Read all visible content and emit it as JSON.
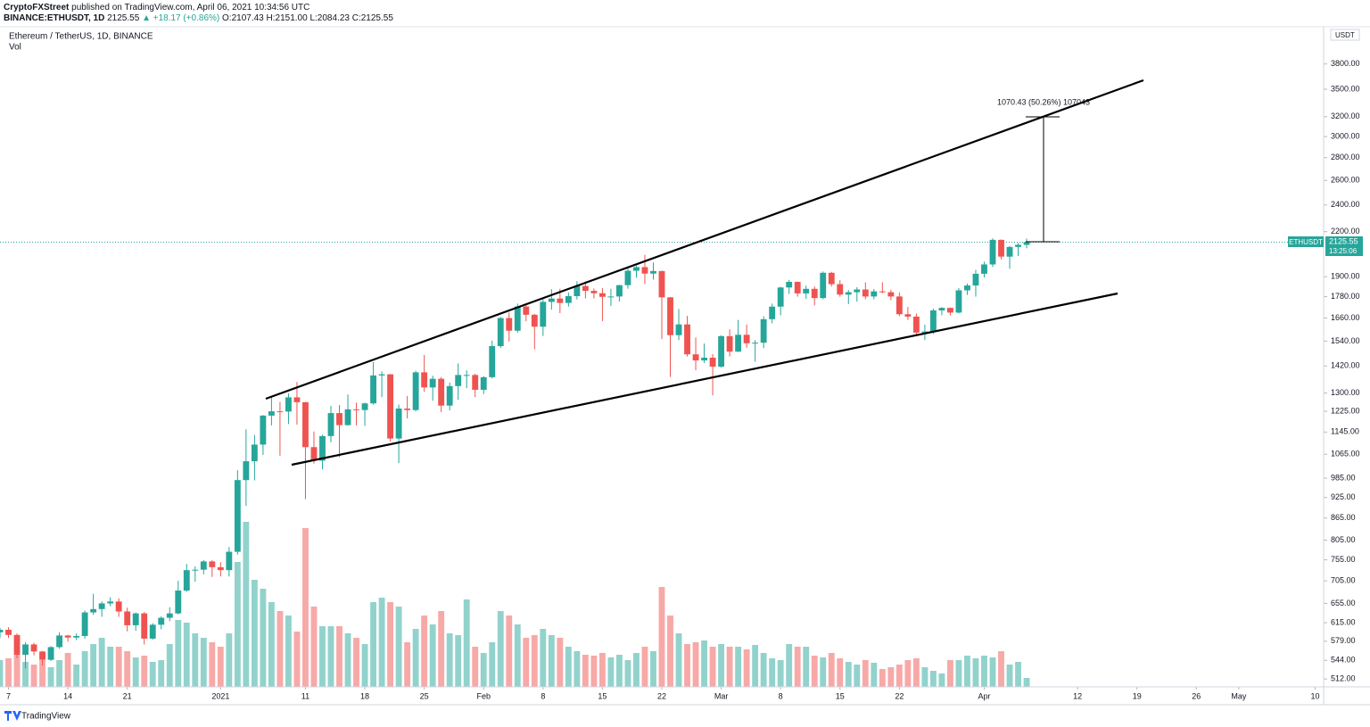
{
  "header": {
    "publisher": "CryptoFXStreet",
    "published": "published on TradingView.com, April 06, 2021 10:34:56 UTC",
    "symbol": "BINANCE:ETHUSDT, 1D",
    "last": "2125.55",
    "change": "▲ +18.17 (+0.86%)",
    "open": "O:2107.43",
    "high": "H:2151.00",
    "low": "L:2084.23",
    "close": "C:2125.55"
  },
  "price_box": {
    "symbol": "ETHUSDT",
    "price": "2125.55",
    "countdown": "13:25:06"
  },
  "currency": "USDT",
  "measure": "1070.43 (50.26%) 107043",
  "footer": "TradingView",
  "chart_data": {
    "type": "candlestick",
    "title": "Ethereum / TetherUS, 1D, BINANCE",
    "volume_label": "Vol",
    "log_scale": true,
    "up_color": "#26a69a",
    "down_color": "#ef5350",
    "xlim": [
      "2020-12-06",
      "2021-05-11"
    ],
    "ylim": [
      499,
      4290
    ],
    "yticks": [
      {
        "value": 3800,
        "label": "3800.00"
      },
      {
        "value": 3500,
        "label": "3500.00"
      },
      {
        "value": 3200,
        "label": "3200.00"
      },
      {
        "value": 3000,
        "label": "3000.00"
      },
      {
        "value": 2800,
        "label": "2800.00"
      },
      {
        "value": 2600,
        "label": "2600.00"
      },
      {
        "value": 2400,
        "label": "2400.00"
      },
      {
        "value": 2200,
        "label": "2200.00"
      },
      {
        "value": 1900,
        "label": "1900.00"
      },
      {
        "value": 1780,
        "label": "1780.00"
      },
      {
        "value": 1660,
        "label": "1660.00"
      },
      {
        "value": 1540,
        "label": "1540.00"
      },
      {
        "value": 1420,
        "label": "1420.00"
      },
      {
        "value": 1300,
        "label": "1300.00"
      },
      {
        "value": 1225,
        "label": "1225.00"
      },
      {
        "value": 1145,
        "label": "1145.00"
      },
      {
        "value": 1065,
        "label": "1065.00"
      },
      {
        "value": 985,
        "label": "985.00"
      },
      {
        "value": 925,
        "label": "925.00"
      },
      {
        "value": 865,
        "label": "865.00"
      },
      {
        "value": 805,
        "label": "805.00"
      },
      {
        "value": 755,
        "label": "755.00"
      },
      {
        "value": 705,
        "label": "705.00"
      },
      {
        "value": 655,
        "label": "655.00"
      },
      {
        "value": 615,
        "label": "615.00"
      },
      {
        "value": 579,
        "label": "579.00"
      },
      {
        "value": 544,
        "label": "544.00"
      },
      {
        "value": 512,
        "label": "512.00"
      }
    ],
    "xticks": [
      {
        "value": "2020-12-07",
        "label": "7"
      },
      {
        "value": "2020-12-14",
        "label": "14"
      },
      {
        "value": "2020-12-21",
        "label": "21"
      },
      {
        "value": "2021-01-01",
        "label": "2021"
      },
      {
        "value": "2021-01-11",
        "label": "11"
      },
      {
        "value": "2021-01-18",
        "label": "18"
      },
      {
        "value": "2021-01-25",
        "label": "25"
      },
      {
        "value": "2021-02-01",
        "label": "Feb"
      },
      {
        "value": "2021-02-08",
        "label": "8"
      },
      {
        "value": "2021-02-15",
        "label": "15"
      },
      {
        "value": "2021-02-22",
        "label": "22"
      },
      {
        "value": "2021-03-01",
        "label": "Mar"
      },
      {
        "value": "2021-03-08",
        "label": "8"
      },
      {
        "value": "2021-03-15",
        "label": "15"
      },
      {
        "value": "2021-03-22",
        "label": "22"
      },
      {
        "value": "2021-04-01",
        "label": "Apr"
      },
      {
        "value": "2021-04-12",
        "label": "12"
      },
      {
        "value": "2021-04-19",
        "label": "19"
      },
      {
        "value": "2021-04-26",
        "label": "26"
      },
      {
        "value": "2021-05-01",
        "label": "May"
      },
      {
        "value": "2021-05-10",
        "label": "10"
      }
    ],
    "x_start": "2020-12-06",
    "open": [
      596,
      601,
      591,
      554,
      573,
      560,
      545,
      568,
      590,
      586,
      589,
      636,
      643,
      655,
      659,
      638,
      610,
      634,
      584,
      611,
      625,
      634,
      683,
      730,
      731,
      751,
      737,
      730,
      775,
      979,
      1041,
      1099,
      1208,
      1225,
      1224,
      1282,
      1262,
      1090,
      1043,
      1130,
      1218,
      1171,
      1233,
      1230,
      1257,
      1377,
      1382,
      1121,
      1236,
      1230,
      1391,
      1324,
      1362,
      1248,
      1330,
      1379,
      1379,
      1314,
      1369,
      1515,
      1660,
      1593,
      1724,
      1678,
      1614,
      1750,
      1769,
      1744,
      1783,
      1843,
      1814,
      1800,
      1779,
      1781,
      1848,
      1937,
      1960,
      1919,
      1935,
      1776,
      1570,
      1626,
      1475,
      1446,
      1459,
      1417,
      1565,
      1488,
      1572,
      1529,
      1532,
      1654,
      1723,
      1834,
      1868,
      1799,
      1826,
      1772,
      1924,
      1854,
      1792,
      1806,
      1822,
      1781,
      1811,
      1806,
      1781,
      1681,
      1668,
      1583,
      1589,
      1702,
      1716,
      1690,
      1817,
      1846,
      1918,
      1977,
      2142,
      2028,
      2093,
      2107.43
    ],
    "high": [
      605,
      606,
      594,
      577,
      576,
      561,
      570,
      596,
      591,
      594,
      640,
      676,
      659,
      668,
      666,
      646,
      636,
      637,
      614,
      628,
      647,
      705,
      745,
      739,
      754,
      754,
      749,
      787,
      1011,
      1155,
      1134,
      1210,
      1283,
      1263,
      1300,
      1348,
      1263,
      1147,
      1135,
      1247,
      1250,
      1294,
      1260,
      1260,
      1438,
      1395,
      1383,
      1252,
      1288,
      1398,
      1472,
      1376,
      1370,
      1345,
      1432,
      1400,
      1385,
      1374,
      1543,
      1666,
      1690,
      1740,
      1741,
      1683,
      1765,
      1824,
      1826,
      1805,
      1872,
      1871,
      1828,
      1830,
      1826,
      1850,
      1957,
      1970,
      2040,
      1990,
      1937,
      1778,
      1710,
      1672,
      1558,
      1528,
      1476,
      1570,
      1600,
      1650,
      1625,
      1545,
      1670,
      1740,
      1838,
      1880,
      1870,
      1845,
      1840,
      1932,
      1930,
      1878,
      1819,
      1836,
      1865,
      1825,
      1865,
      1820,
      1805,
      1722,
      1685,
      1625,
      1712,
      1720,
      1718,
      1830,
      1858,
      1943,
      1995,
      2152,
      2145,
      2100,
      2120,
      2151
    ],
    "low": [
      585,
      585,
      548,
      530,
      553,
      535,
      543,
      565,
      578,
      581,
      584,
      631,
      627,
      649,
      627,
      598,
      599,
      573,
      582,
      602,
      618,
      632,
      680,
      703,
      720,
      714,
      715,
      715,
      768,
      900,
      978,
      1063,
      1170,
      1060,
      1175,
      1173,
      920,
      1033,
      1014,
      1107,
      1055,
      1170,
      1170,
      1168,
      1252,
      1283,
      1110,
      1035,
      1197,
      1225,
      1305,
      1268,
      1222,
      1229,
      1272,
      1321,
      1283,
      1296,
      1364,
      1506,
      1538,
      1583,
      1643,
      1500,
      1566,
      1706,
      1687,
      1723,
      1764,
      1770,
      1770,
      1644,
      1727,
      1752,
      1827,
      1893,
      1855,
      1882,
      1550,
      1370,
      1545,
      1465,
      1400,
      1434,
      1290,
      1412,
      1465,
      1486,
      1507,
      1440,
      1505,
      1632,
      1675,
      1796,
      1780,
      1767,
      1730,
      1765,
      1840,
      1780,
      1737,
      1751,
      1765,
      1765,
      1800,
      1760,
      1670,
      1650,
      1565,
      1545,
      1576,
      1675,
      1675,
      1685,
      1790,
      1780,
      1895,
      1960,
      2010,
      1950,
      2032,
      2084.23
    ],
    "close": [
      601,
      591,
      554,
      573,
      560,
      545,
      568,
      590,
      586,
      589,
      636,
      643,
      655,
      659,
      638,
      610,
      634,
      584,
      611,
      625,
      634,
      683,
      730,
      731,
      751,
      737,
      730,
      775,
      979,
      1041,
      1099,
      1208,
      1225,
      1224,
      1282,
      1262,
      1090,
      1043,
      1130,
      1218,
      1171,
      1233,
      1230,
      1257,
      1377,
      1382,
      1121,
      1236,
      1230,
      1391,
      1324,
      1362,
      1248,
      1330,
      1379,
      1379,
      1314,
      1369,
      1515,
      1660,
      1593,
      1724,
      1678,
      1614,
      1750,
      1769,
      1744,
      1783,
      1843,
      1814,
      1800,
      1779,
      1781,
      1848,
      1937,
      1960,
      1919,
      1935,
      1776,
      1570,
      1626,
      1475,
      1446,
      1459,
      1417,
      1565,
      1488,
      1572,
      1529,
      1532,
      1654,
      1723,
      1834,
      1868,
      1799,
      1826,
      1772,
      1924,
      1854,
      1792,
      1806,
      1822,
      1781,
      1811,
      1806,
      1781,
      1681,
      1668,
      1583,
      1589,
      1702,
      1716,
      1690,
      1817,
      1846,
      1918,
      1977,
      2142,
      2028,
      2093,
      2107.43,
      2125.55
    ],
    "volume": [
      30,
      32,
      42,
      28,
      25,
      30,
      22,
      30,
      38,
      25,
      40,
      48,
      55,
      45,
      45,
      40,
      33,
      35,
      28,
      30,
      48,
      75,
      72,
      60,
      55,
      50,
      45,
      60,
      140,
      185,
      120,
      110,
      95,
      85,
      80,
      62,
      178,
      90,
      68,
      68,
      68,
      60,
      55,
      48,
      95,
      100,
      95,
      90,
      50,
      65,
      80,
      70,
      85,
      60,
      58,
      98,
      45,
      38,
      50,
      85,
      80,
      70,
      55,
      58,
      65,
      58,
      55,
      45,
      40,
      36,
      35,
      38,
      33,
      36,
      30,
      38,
      45,
      40,
      112,
      80,
      60,
      48,
      50,
      52,
      45,
      48,
      45,
      45,
      42,
      47,
      38,
      32,
      30,
      48,
      45,
      45,
      35,
      33,
      38,
      32,
      28,
      25,
      30,
      27,
      20,
      22,
      25,
      30,
      32,
      22,
      18,
      15,
      30,
      30,
      35,
      32,
      35,
      33,
      40,
      25,
      28,
      10
    ]
  }
}
